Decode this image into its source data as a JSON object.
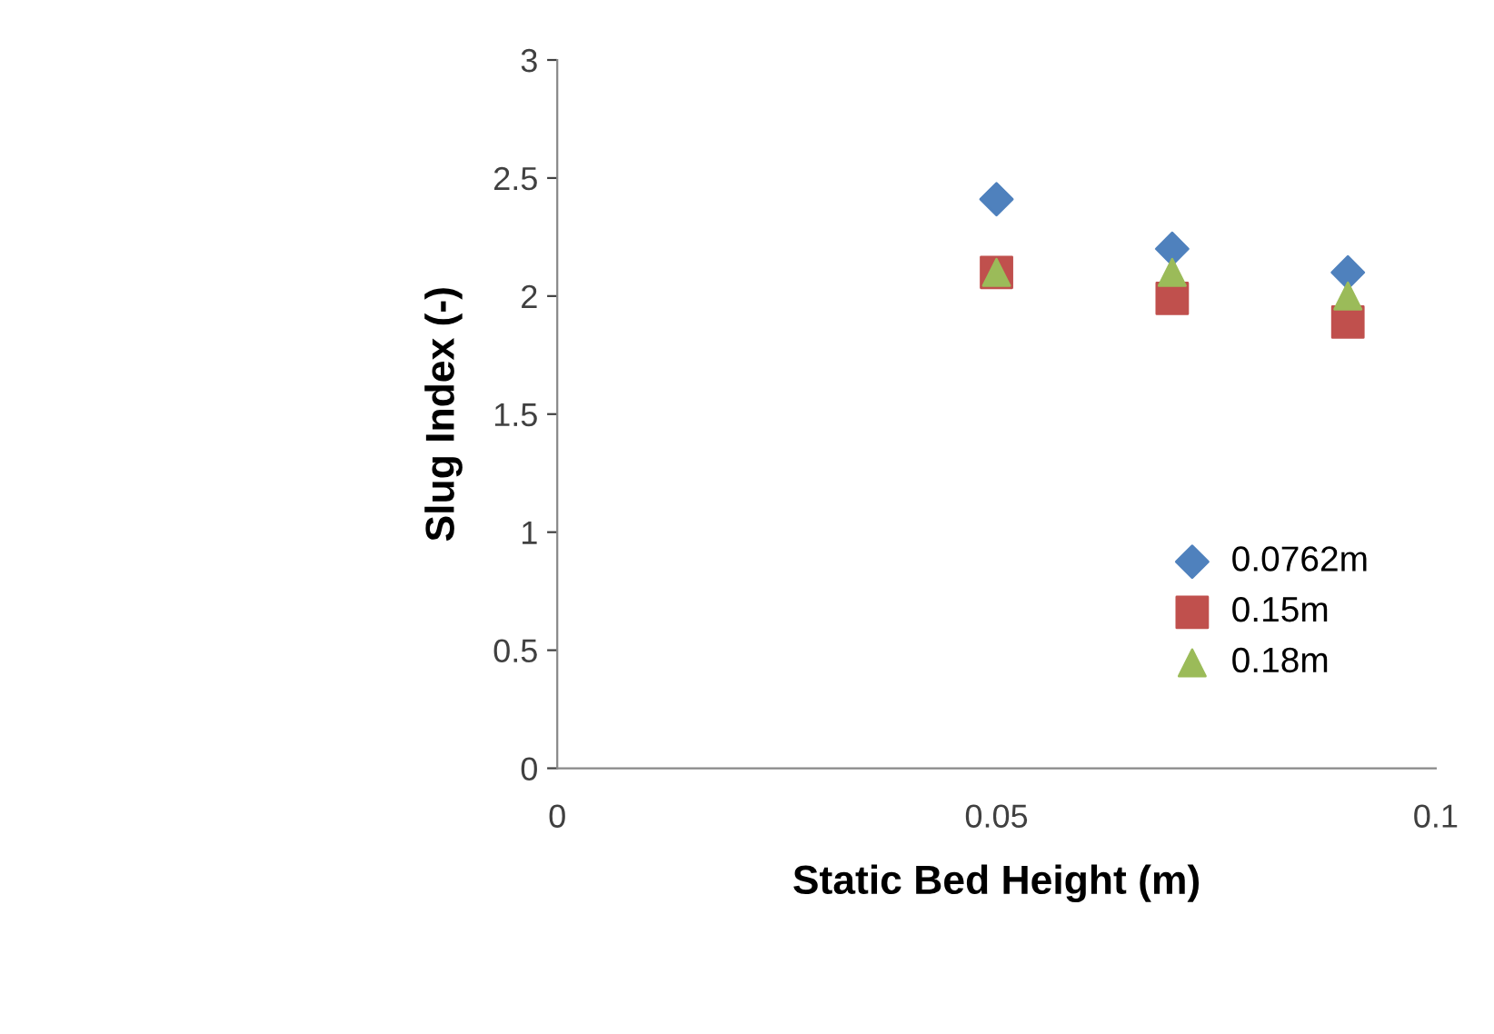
{
  "chart_data": {
    "type": "scatter",
    "xlabel": "Static Bed Height (m)",
    "ylabel": "Slug Index (-)",
    "xlim": [
      0,
      0.1
    ],
    "xticks": [
      0,
      0.05,
      0.1
    ],
    "ylim": [
      0,
      3
    ],
    "yticks": [
      0,
      0.5,
      1,
      1.5,
      2,
      2.5,
      3
    ],
    "grid": false,
    "legend": "right",
    "series": [
      {
        "name": "0.0762m",
        "color": "#4f81bd",
        "marker": "diamond",
        "x": [
          0.05,
          0.07,
          0.09
        ],
        "values": [
          2.41,
          2.2,
          2.1
        ]
      },
      {
        "name": "0.15m",
        "color": "#c0504d",
        "marker": "square",
        "x": [
          0.05,
          0.07,
          0.09
        ],
        "values": [
          2.1,
          1.99,
          1.89
        ]
      },
      {
        "name": "0.18m",
        "color": "#9bbb59",
        "marker": "triangle",
        "x": [
          0.05,
          0.07,
          0.09
        ],
        "values": [
          2.1,
          2.1,
          2.0
        ]
      }
    ]
  }
}
